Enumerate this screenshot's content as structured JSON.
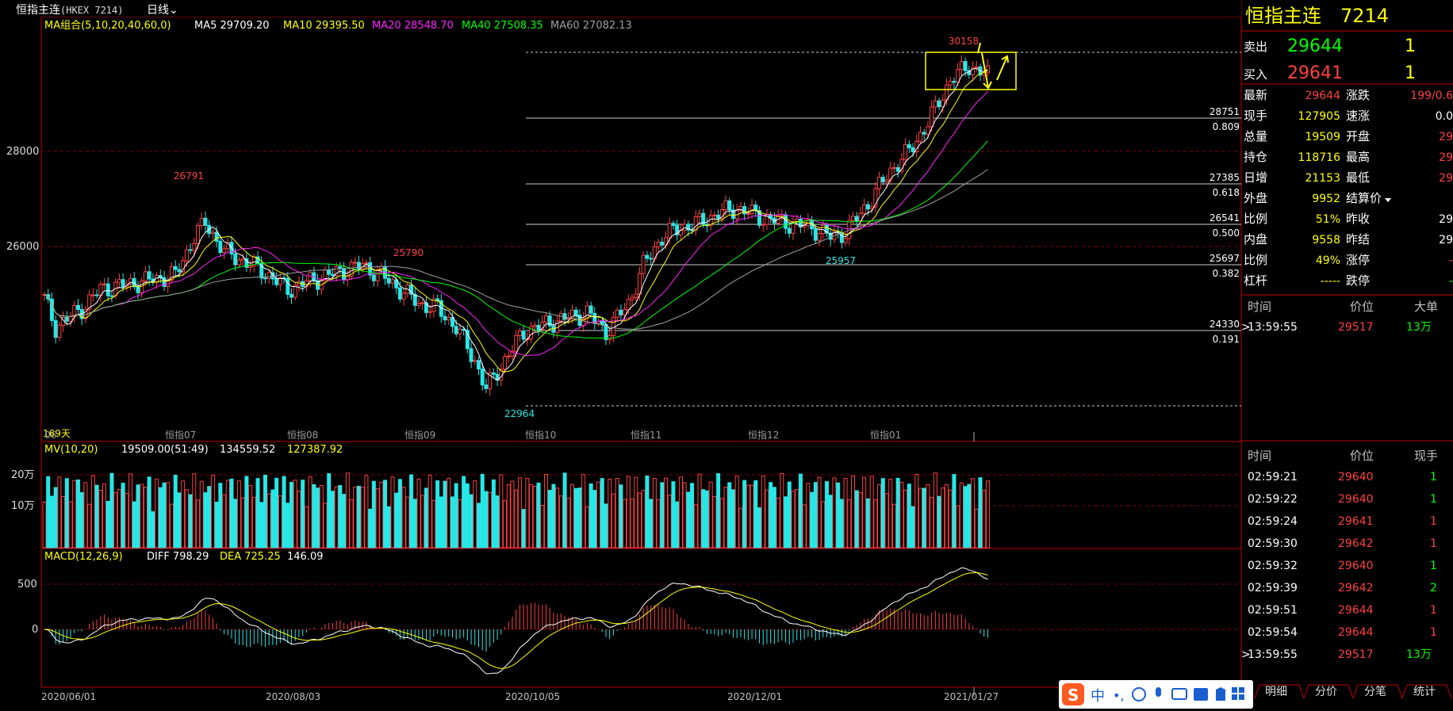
{
  "window": {
    "title": "恒指主连",
    "code": "(HKEX 7214)",
    "period": "日线"
  },
  "colors": {
    "up": "#ff4040",
    "down": "#27e7e7",
    "ma5": "#ffffff",
    "ma10": "#ffff00",
    "ma20": "#ff20ff",
    "ma40": "#00ff00",
    "ma60": "#a0a0a0",
    "yellow": "#ffff00"
  },
  "price_legend": {
    "label": "MA组合(5,10,20,40,60,0)",
    "items": [
      {
        "label": "MA5 29709.20",
        "color": "#ffffff"
      },
      {
        "label": "MA10 29395.50",
        "color": "#ffff00"
      },
      {
        "label": "MA20 28548.70",
        "color": "#ff20ff"
      },
      {
        "label": "MA40 27508.35",
        "color": "#00ff00"
      },
      {
        "label": "MA60 27082.13",
        "color": "#a0a0a0"
      }
    ]
  },
  "price_axis_labels": [
    "28000",
    "26000"
  ],
  "annotations": {
    "high": "30158",
    "low": "22964",
    "peak1": "26791",
    "peak2": "25790",
    "trough": "25957",
    "days": "169天"
  },
  "fib_levels": [
    {
      "price": "28751",
      "ratio": "0.809"
    },
    {
      "price": "27385",
      "ratio": "0.618"
    },
    {
      "price": "26541",
      "ratio": "0.500"
    },
    {
      "price": "25697",
      "ratio": "0.382"
    },
    {
      "price": "24330",
      "ratio": "0.191"
    }
  ],
  "month_labels": [
    "06",
    "恒指07",
    "恒指08",
    "恒指09",
    "恒指10",
    "恒指11",
    "恒指12",
    "恒指01"
  ],
  "volume_legend": {
    "label": "MV(10,20)",
    "v1": "19509.00(51:49)",
    "v2": "134559.52",
    "v3": "127387.92"
  },
  "volume_axis_labels": [
    "20万",
    "10万"
  ],
  "macd_legend": {
    "label": "MACD(12,26,9)",
    "diff": "DIFF 798.29",
    "dea": "DEA 725.25",
    "macd": "146.09"
  },
  "macd_axis_labels": [
    "500",
    "0"
  ],
  "date_labels": [
    "2020/06/01",
    "2020/08/03",
    "2020/10/05",
    "2020/12/01",
    "2021/01/27"
  ],
  "quote": {
    "title": "恒指主连",
    "code": "7214",
    "sell": {
      "label": "卖出",
      "price": "29644",
      "qty": "1"
    },
    "buy": {
      "label": "买入",
      "price": "29641",
      "qty": "1"
    },
    "rows": [
      {
        "l1": "最新",
        "v1": "29644",
        "c1": "#ff4040",
        "l2": "涨跌",
        "v2": "199/0.6",
        "c2": "#ff4040"
      },
      {
        "l1": "现手",
        "v1": "127905",
        "c1": "#ffff00",
        "l2": "速涨",
        "v2": "0.0",
        "c2": "#ffffff"
      },
      {
        "l1": "总量",
        "v1": "19509",
        "c1": "#ffff00",
        "l2": "开盘",
        "v2": "29",
        "c2": "#ff4040"
      },
      {
        "l1": "持仓",
        "v1": "118716",
        "c1": "#ffff00",
        "l2": "最高",
        "v2": "29",
        "c2": "#ff4040"
      },
      {
        "l1": "日增",
        "v1": "21153",
        "c1": "#ffff00",
        "l2": "最低",
        "v2": "29",
        "c2": "#ff4040"
      },
      {
        "l1": "外盘",
        "v1": "9952",
        "c1": "#ffff00",
        "l2": "结算价",
        "v2": "",
        "c2": "#ffffff"
      },
      {
        "l1": "比例",
        "v1": "51%",
        "c1": "#ffff00",
        "l2": "昨收",
        "v2": "29",
        "c2": "#ffffff"
      },
      {
        "l1": "内盘",
        "v1": "9558",
        "c1": "#ffff00",
        "l2": "昨结",
        "v2": "29",
        "c2": "#ffffff"
      },
      {
        "l1": "比例",
        "v1": "49%",
        "c1": "#ffff00",
        "l2": "涨停",
        "v2": "-",
        "c2": "#ff4040"
      },
      {
        "l1": "杠杆",
        "v1": "-----",
        "c1": "#ffff00",
        "l2": "跌停",
        "v2": "-",
        "c2": "#00ff00"
      }
    ]
  },
  "big_trades": {
    "headers": [
      "时间",
      "价位",
      "大单"
    ],
    "rows": [
      {
        "time": "13:59:55",
        "price": "29517",
        "vol": "13万"
      }
    ]
  },
  "ticks": {
    "headers": [
      "时间",
      "价位",
      "现手"
    ],
    "rows": [
      {
        "time": "02:59:21",
        "price": "29640",
        "vol": "1",
        "vc": "#00ff00"
      },
      {
        "time": "02:59:22",
        "price": "29640",
        "vol": "1",
        "vc": "#00ff00"
      },
      {
        "time": "02:59:24",
        "price": "29641",
        "vol": "1",
        "vc": "#ff4040"
      },
      {
        "time": "02:59:30",
        "price": "29642",
        "vol": "1",
        "vc": "#ff4040"
      },
      {
        "time": "02:59:32",
        "price": "29640",
        "vol": "1",
        "vc": "#00ff00"
      },
      {
        "time": "02:59:39",
        "price": "29642",
        "vol": "2",
        "vc": "#00ff00"
      },
      {
        "time": "02:59:51",
        "price": "29644",
        "vol": "1",
        "vc": "#ff4040"
      },
      {
        "time": "02:59:54",
        "price": "29644",
        "vol": "1",
        "vc": "#ff4040"
      },
      {
        "time": "13:59:55",
        "price": "29517",
        "vol": "13万",
        "vc": "#00ff00"
      }
    ]
  },
  "bottom_tabs": [
    "明细",
    "分价",
    "分笔",
    "统计"
  ],
  "ime": {
    "label": "中"
  }
}
